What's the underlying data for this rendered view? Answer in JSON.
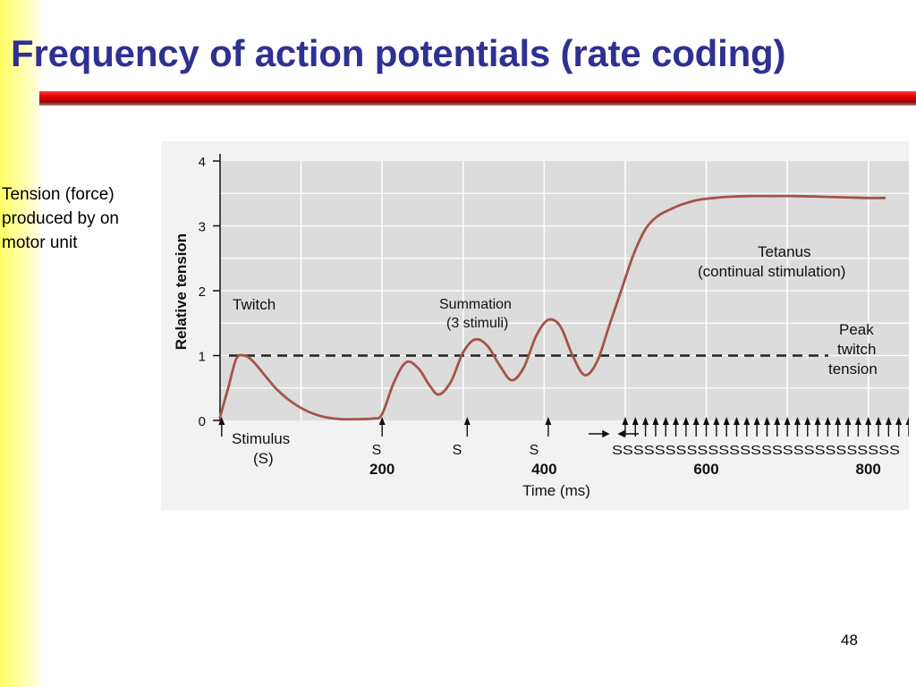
{
  "slide": {
    "title": "Frequency of action potentials (rate coding)",
    "side_text_lines": [
      "Tension (force)",
      "produced by on",
      "motor unit"
    ],
    "page_number": "48"
  },
  "colors": {
    "title": "#2e3192",
    "rule": "#e60000",
    "sidebar": "#ffff66",
    "curve": "#a5534a",
    "plot_bg": "#dcdcdc"
  },
  "chart_data": {
    "type": "line",
    "ylabel": "Relative tension",
    "xlabel": "Time (ms)",
    "xlim": [
      0,
      850
    ],
    "ylim": [
      0,
      4
    ],
    "grid": true,
    "y_ticks": [
      0,
      1,
      2,
      3,
      4
    ],
    "x_tick_labels": [
      {
        "x": 200,
        "label": "200"
      },
      {
        "x": 400,
        "label": "400"
      },
      {
        "x": 600,
        "label": "600"
      },
      {
        "x": 800,
        "label": "800"
      }
    ],
    "series": [
      {
        "x": [
          0,
          10,
          20,
          30,
          40,
          55,
          70,
          90,
          110,
          130,
          150,
          170,
          190,
          200,
          215,
          230,
          245,
          258,
          270,
          285,
          300,
          315,
          330,
          345,
          360,
          375,
          390,
          405,
          420,
          435,
          450,
          465,
          480,
          495,
          510,
          525,
          540,
          555,
          570,
          590,
          610,
          630,
          655,
          680,
          710,
          740,
          770,
          800,
          820
        ],
        "y": [
          0.05,
          0.5,
          0.95,
          1.0,
          0.92,
          0.7,
          0.48,
          0.27,
          0.13,
          0.05,
          0.02,
          0.02,
          0.03,
          0.1,
          0.6,
          0.9,
          0.8,
          0.55,
          0.4,
          0.6,
          1.05,
          1.25,
          1.15,
          0.85,
          0.62,
          0.82,
          1.3,
          1.55,
          1.45,
          1.0,
          0.7,
          0.9,
          1.45,
          2.0,
          2.55,
          2.95,
          3.15,
          3.25,
          3.33,
          3.4,
          3.43,
          3.45,
          3.46,
          3.46,
          3.46,
          3.45,
          3.44,
          3.43,
          3.43
        ]
      }
    ],
    "reference_line": {
      "y": 1.0,
      "style": "dashed"
    },
    "stimuli": {
      "single_x": [
        2,
        200,
        305,
        405
      ],
      "train_start": 500,
      "train_end": 850,
      "train_count": 29
    },
    "annotations": {
      "twitch": "Twitch",
      "summation_line1": "Summation",
      "summation_line2": "(3 stimuli)",
      "tetanus_line1": "Tetanus",
      "tetanus_line2": "(continual stimulation)",
      "peak_line1": "Peak",
      "peak_line2": "twitch",
      "peak_line3": "tension",
      "stimulus_line1": "Stimulus",
      "stimulus_line2": "(S)",
      "s_label": "S",
      "train_label": "SSSSSSSSSSSSSSSSSSSSSSSSSSS"
    }
  }
}
